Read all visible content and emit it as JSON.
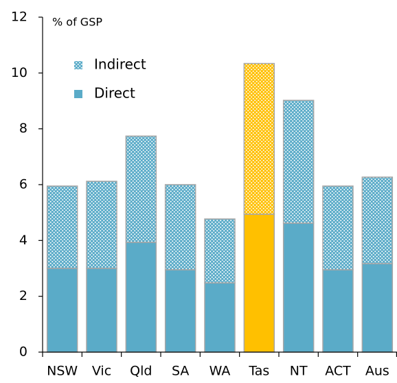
{
  "chart_data": {
    "type": "stacked_bar",
    "ylabel": "% of GSP",
    "categories": [
      "NSW",
      "Vic",
      "Qld",
      "SA",
      "WA",
      "Tas",
      "NT",
      "ACT",
      "Aus"
    ],
    "series": [
      {
        "name": "Direct",
        "color": "#5aabc8",
        "colors": [
          "#5aabc8",
          "#5aabc8",
          "#5aabc8",
          "#5aabc8",
          "#5aabc8",
          "#ffc000",
          "#5aabc8",
          "#5aabc8",
          "#5aabc8"
        ],
        "pattern": "solid",
        "values": [
          3.0,
          3.0,
          3.93,
          2.95,
          2.48,
          4.94,
          4.62,
          2.95,
          3.17
        ]
      },
      {
        "name": "Indirect",
        "color": "#5aabc8",
        "colors": [
          "#5aabc8",
          "#5aabc8",
          "#5aabc8",
          "#5aabc8",
          "#5aabc8",
          "#ffc000",
          "#5aabc8",
          "#5aabc8",
          "#5aabc8"
        ],
        "pattern": "dots",
        "values": [
          2.95,
          3.12,
          3.81,
          3.05,
          2.29,
          5.4,
          4.4,
          3.0,
          3.1
        ]
      }
    ],
    "ylim": [
      0,
      12
    ],
    "yticks": [
      0,
      2,
      4,
      6,
      8,
      10,
      12
    ],
    "legend": "upper left"
  }
}
